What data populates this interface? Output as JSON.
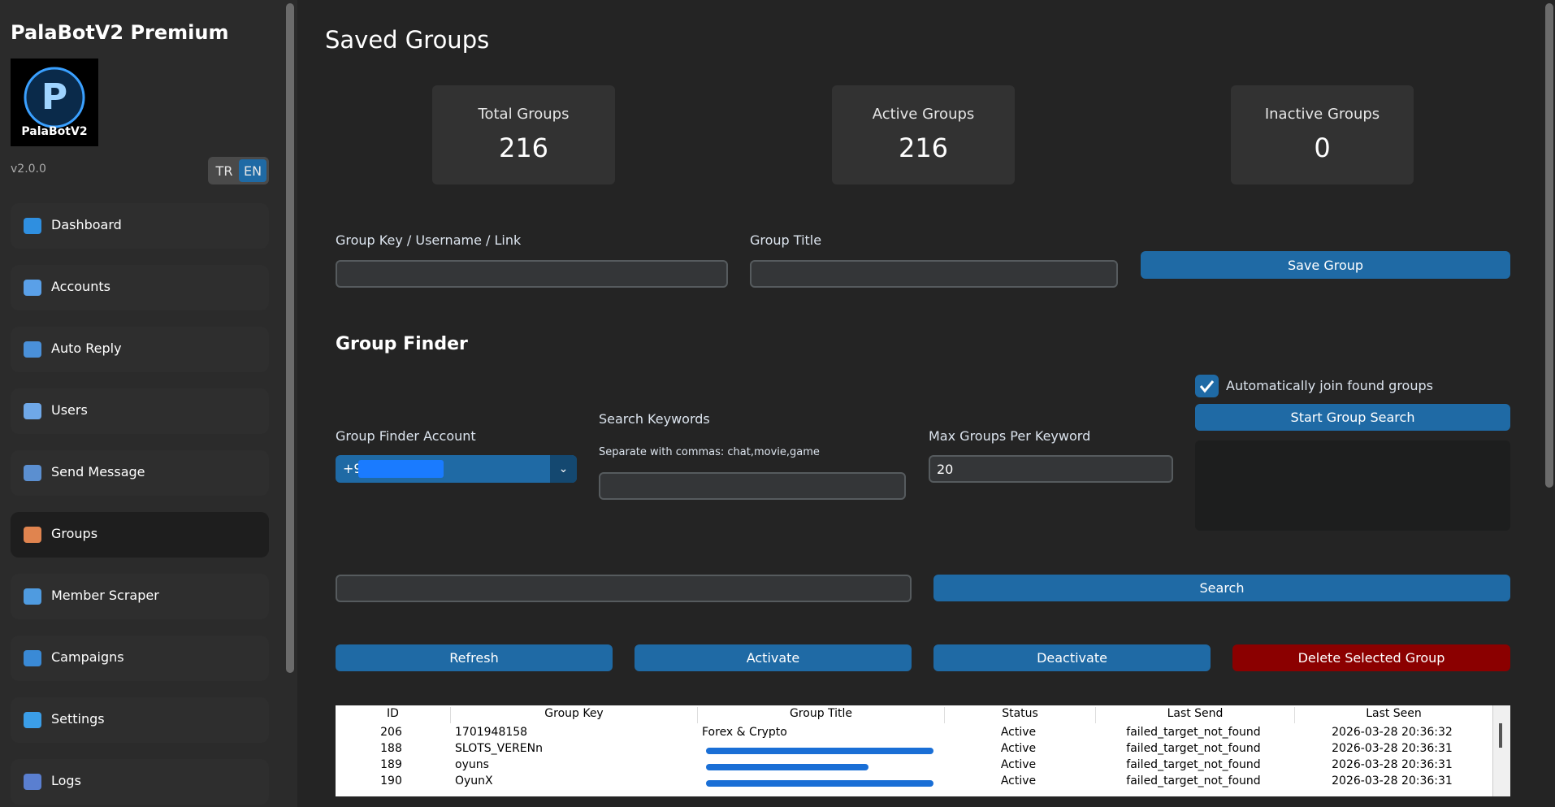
{
  "sidebar": {
    "title": "PalaBotV2 Premium",
    "logo_text": "PalaBotV2",
    "version": "v2.0.0",
    "languages": [
      "TR",
      "EN"
    ],
    "nav": [
      "Dashboard",
      "Accounts",
      "Auto Reply",
      "Users",
      "Send Message",
      "Groups",
      "Member Scraper",
      "Campaigns",
      "Settings",
      "Logs"
    ]
  },
  "main": {
    "title": "Saved Groups",
    "stats": [
      {
        "label": "Total Groups",
        "value": 216
      },
      {
        "label": "Active Groups",
        "value": 216
      },
      {
        "label": "Inactive Groups",
        "value": 0
      }
    ],
    "form": {
      "key_label": "Group Key / Username / Link",
      "title_label": "Group Title",
      "save_button": "Save Group"
    },
    "finder": {
      "title": "Group Finder",
      "auto_join": "Automatically join found groups",
      "start_button": "Start Group Search",
      "account_label": "Group Finder Account",
      "account_value": "+9",
      "keywords_label": "Search Keywords",
      "keywords_hint": "Separate with commas: chat,movie,game",
      "max_label": "Max Groups Per Keyword",
      "max_value": "20"
    },
    "search_button": "Search",
    "actions": [
      "Refresh",
      "Activate",
      "Deactivate",
      "Delete Selected Group"
    ],
    "table": {
      "columns": [
        "ID",
        "Group Key",
        "Group Title",
        "Status",
        "Last Send",
        "Last Seen"
      ],
      "rows": [
        [
          "206",
          "1701948158",
          "Forex & Crypto",
          "Active",
          "failed_target_not_found",
          "2026-03-28 20:36:32"
        ],
        [
          "188",
          "SLOTS_VERENn",
          null,
          "Active",
          "failed_target_not_found",
          "2026-03-28 20:36:31"
        ],
        [
          "189",
          "oyuns",
          null,
          "Active",
          "failed_target_not_found",
          "2026-03-28 20:36:31"
        ],
        [
          "190",
          "OyunX",
          null,
          "Active",
          "failed_target_not_found",
          "2026-03-28 20:36:31"
        ]
      ]
    }
  }
}
